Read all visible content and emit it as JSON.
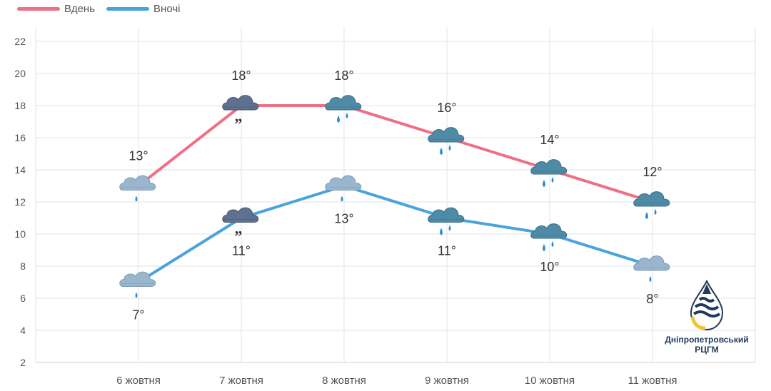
{
  "legend": {
    "day_label": "Вдень",
    "night_label": "Вночі",
    "day_color": "#ef6f86",
    "night_color": "#4ba3dd"
  },
  "chart_data": {
    "type": "line",
    "categories": [
      "6 жовтня",
      "7 жовтня",
      "8 жовтня",
      "9 жовтня",
      "10 жовтня",
      "11 жовтня"
    ],
    "series": [
      {
        "name": "Вдень",
        "values": [
          13,
          18,
          18,
          16,
          14,
          12
        ],
        "labels": [
          "13°",
          "18°",
          "18°",
          "16°",
          "14°",
          "12°"
        ],
        "icons": [
          "light-rain-icon",
          "drizzle-icon",
          "rain-icon",
          "rain-icon",
          "rain-icon",
          "rain-icon"
        ]
      },
      {
        "name": "Вночі",
        "values": [
          7,
          11,
          13,
          11,
          10,
          8
        ],
        "labels": [
          "7°",
          "11°",
          "13°",
          "11°",
          "10°",
          "8°"
        ],
        "icons": [
          "light-rain-icon",
          "drizzle-icon",
          "light-rain-icon",
          "rain-icon",
          "rain-icon",
          "light-rain-icon"
        ]
      }
    ],
    "yticks": [
      2,
      4,
      6,
      8,
      10,
      12,
      14,
      16,
      18,
      20,
      22
    ],
    "ylim": [
      2,
      22
    ],
    "grid": true,
    "legend_position": "top-left"
  },
  "logo": {
    "line1": "Дніпропетровський",
    "line2": "РЦГМ"
  }
}
